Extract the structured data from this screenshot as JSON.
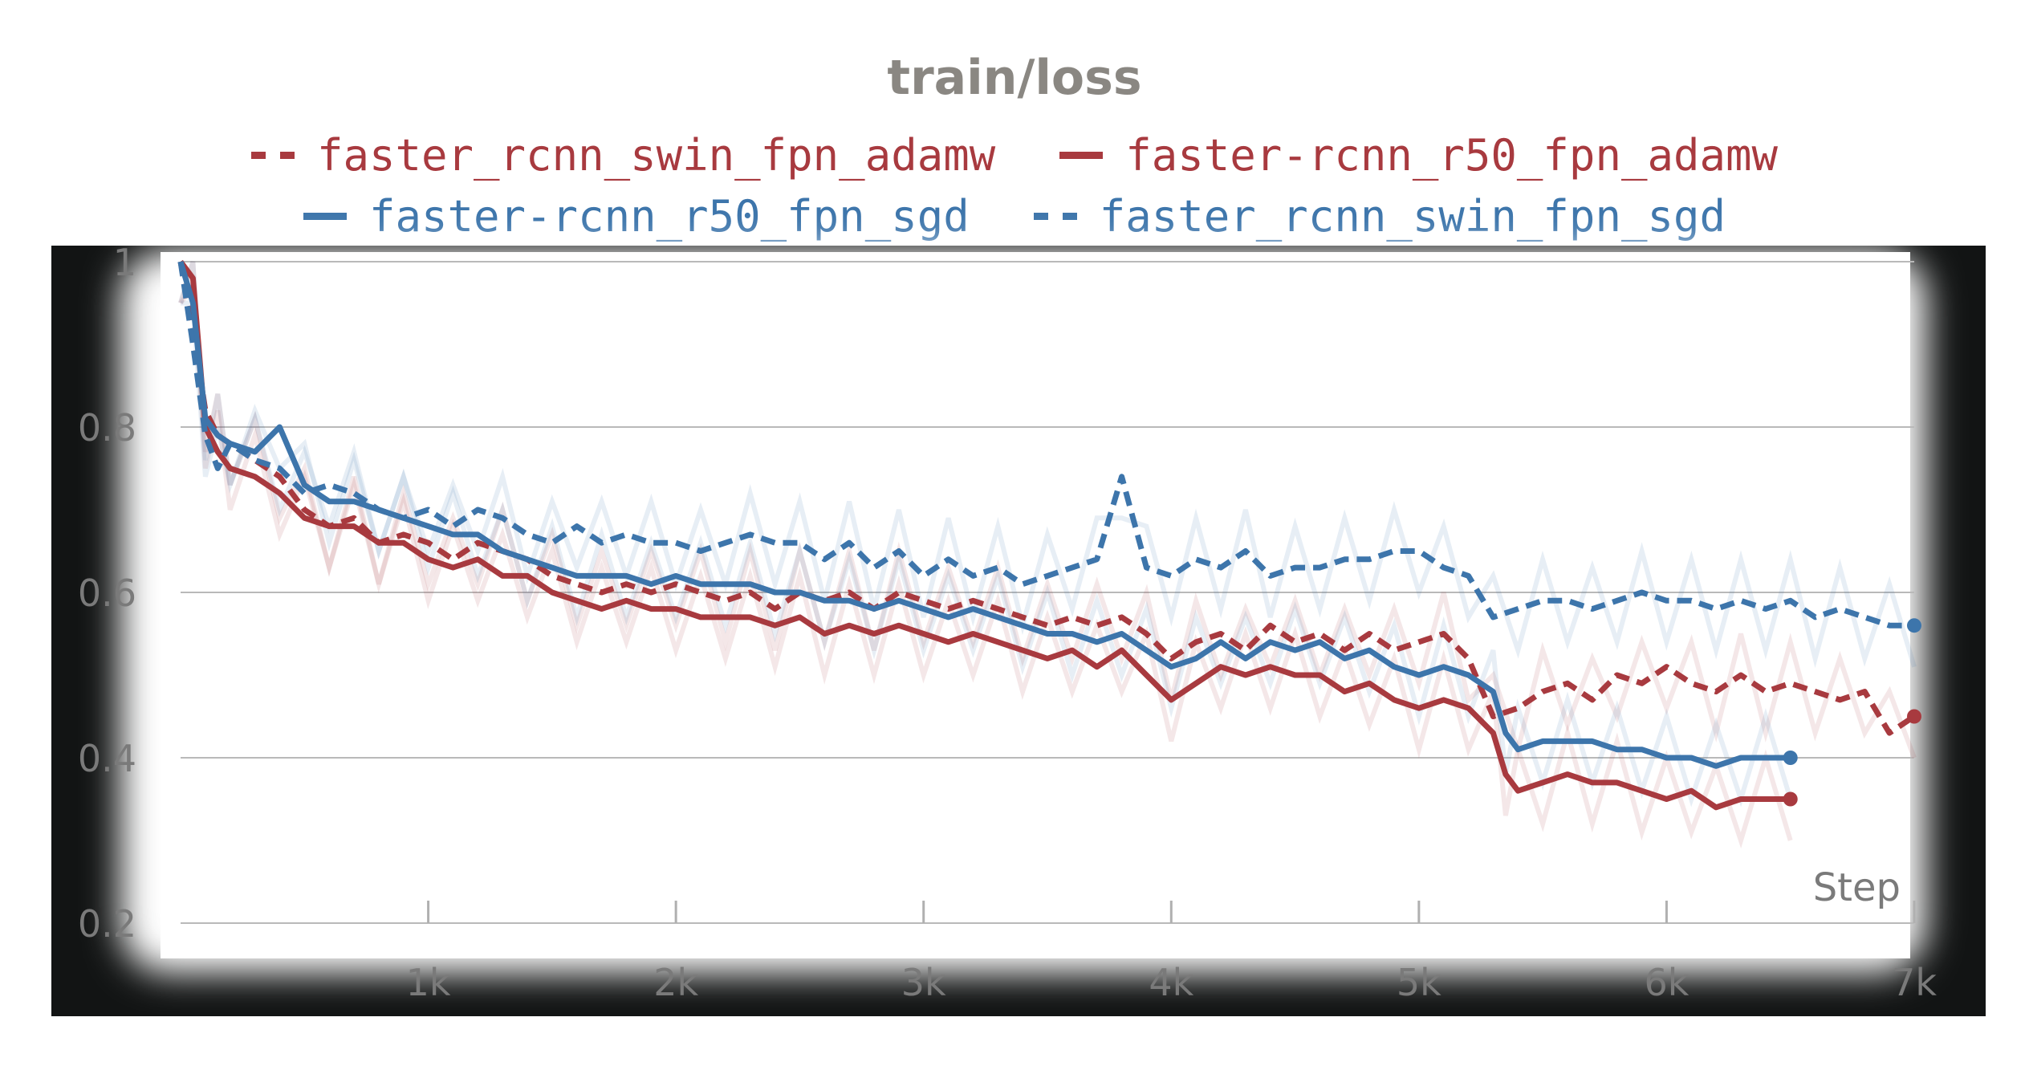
{
  "chart_data": {
    "type": "line",
    "title": "train/loss",
    "xlabel": "Step",
    "ylabel": "",
    "xlim": [
      0,
      7000
    ],
    "ylim": [
      0.2,
      1.0
    ],
    "x_ticks": [
      1000,
      2000,
      3000,
      4000,
      5000,
      6000,
      7000
    ],
    "x_tick_labels": [
      "1k",
      "2k",
      "3k",
      "4k",
      "5k",
      "6k",
      "7k"
    ],
    "y_ticks": [
      0.2,
      0.4,
      0.6,
      0.8,
      1.0
    ],
    "y_tick_labels": [
      "0.2",
      "0.4",
      "0.6",
      "0.8",
      "1"
    ],
    "grid": true,
    "legend_position": "top-center",
    "colors": {
      "red": "#a83a3f",
      "blue": "#3d75ab",
      "title": "#8a8782",
      "tick": "#7a7a7a",
      "frame": "#121414"
    },
    "series": [
      {
        "name": "faster_rcnn_swin_fpn_adamw",
        "color": "#a83a3f",
        "dash": true,
        "x": [
          0,
          50,
          100,
          150,
          200,
          300,
          400,
          500,
          600,
          700,
          800,
          900,
          1000,
          1100,
          1200,
          1300,
          1400,
          1500,
          1600,
          1700,
          1800,
          1900,
          2000,
          2100,
          2200,
          2300,
          2400,
          2500,
          2600,
          2700,
          2800,
          2900,
          3000,
          3100,
          3200,
          3300,
          3400,
          3500,
          3600,
          3700,
          3800,
          3900,
          4000,
          4100,
          4200,
          4300,
          4400,
          4500,
          4600,
          4700,
          4800,
          4900,
          5000,
          5100,
          5200,
          5300,
          5400,
          5500,
          5600,
          5700,
          5800,
          5900,
          6000,
          6100,
          6200,
          6300,
          6400,
          6500,
          6600,
          6700,
          6800,
          6900,
          7000
        ],
        "values": [
          1.0,
          0.92,
          0.82,
          0.79,
          0.78,
          0.76,
          0.74,
          0.7,
          0.68,
          0.69,
          0.66,
          0.67,
          0.66,
          0.64,
          0.66,
          0.65,
          0.64,
          0.62,
          0.61,
          0.6,
          0.61,
          0.6,
          0.61,
          0.6,
          0.59,
          0.6,
          0.58,
          0.6,
          0.59,
          0.6,
          0.58,
          0.6,
          0.59,
          0.58,
          0.59,
          0.58,
          0.57,
          0.56,
          0.57,
          0.56,
          0.57,
          0.55,
          0.52,
          0.54,
          0.55,
          0.53,
          0.56,
          0.54,
          0.55,
          0.53,
          0.55,
          0.53,
          0.54,
          0.55,
          0.52,
          0.45,
          0.46,
          0.48,
          0.49,
          0.47,
          0.5,
          0.49,
          0.51,
          0.49,
          0.48,
          0.5,
          0.48,
          0.49,
          0.48,
          0.47,
          0.48,
          0.43,
          0.45
        ]
      },
      {
        "name": "faster-rcnn_r50_fpn_adamw",
        "color": "#a83a3f",
        "dash": false,
        "x": [
          0,
          50,
          100,
          150,
          200,
          300,
          400,
          500,
          600,
          700,
          800,
          900,
          1000,
          1100,
          1200,
          1300,
          1400,
          1500,
          1600,
          1700,
          1800,
          1900,
          2000,
          2100,
          2200,
          2300,
          2400,
          2500,
          2600,
          2700,
          2800,
          2900,
          3000,
          3100,
          3200,
          3300,
          3400,
          3500,
          3600,
          3700,
          3800,
          3900,
          4000,
          4100,
          4200,
          4300,
          4400,
          4500,
          4600,
          4700,
          4800,
          4900,
          5000,
          5100,
          5200,
          5300,
          5350,
          5400,
          5500,
          5600,
          5700,
          5800,
          5900,
          6000,
          6100,
          6200,
          6300,
          6400,
          6500
        ],
        "values": [
          1.0,
          0.98,
          0.8,
          0.77,
          0.75,
          0.74,
          0.72,
          0.69,
          0.68,
          0.68,
          0.66,
          0.66,
          0.64,
          0.63,
          0.64,
          0.62,
          0.62,
          0.6,
          0.59,
          0.58,
          0.59,
          0.58,
          0.58,
          0.57,
          0.57,
          0.57,
          0.56,
          0.57,
          0.55,
          0.56,
          0.55,
          0.56,
          0.55,
          0.54,
          0.55,
          0.54,
          0.53,
          0.52,
          0.53,
          0.51,
          0.53,
          0.5,
          0.47,
          0.49,
          0.51,
          0.5,
          0.51,
          0.5,
          0.5,
          0.48,
          0.49,
          0.47,
          0.46,
          0.47,
          0.46,
          0.43,
          0.38,
          0.36,
          0.37,
          0.38,
          0.37,
          0.37,
          0.36,
          0.35,
          0.36,
          0.34,
          0.35,
          0.35,
          0.35
        ]
      },
      {
        "name": "faster-rcnn_r50_fpn_sgd",
        "color": "#3d75ab",
        "dash": false,
        "x": [
          0,
          50,
          100,
          150,
          200,
          300,
          400,
          500,
          600,
          700,
          800,
          900,
          1000,
          1100,
          1200,
          1300,
          1400,
          1500,
          1600,
          1700,
          1800,
          1900,
          2000,
          2100,
          2200,
          2300,
          2400,
          2500,
          2600,
          2700,
          2800,
          2900,
          3000,
          3100,
          3200,
          3300,
          3400,
          3500,
          3600,
          3700,
          3800,
          3900,
          4000,
          4100,
          4200,
          4300,
          4400,
          4500,
          4600,
          4700,
          4800,
          4900,
          5000,
          5100,
          5200,
          5300,
          5350,
          5400,
          5500,
          5600,
          5700,
          5800,
          5900,
          6000,
          6100,
          6200,
          6300,
          6400,
          6500
        ],
        "values": [
          1.0,
          0.95,
          0.81,
          0.79,
          0.78,
          0.77,
          0.8,
          0.73,
          0.71,
          0.71,
          0.7,
          0.69,
          0.68,
          0.67,
          0.67,
          0.65,
          0.64,
          0.63,
          0.62,
          0.62,
          0.62,
          0.61,
          0.62,
          0.61,
          0.61,
          0.61,
          0.6,
          0.6,
          0.59,
          0.59,
          0.58,
          0.59,
          0.58,
          0.57,
          0.58,
          0.57,
          0.56,
          0.55,
          0.55,
          0.54,
          0.55,
          0.53,
          0.51,
          0.52,
          0.54,
          0.52,
          0.54,
          0.53,
          0.54,
          0.52,
          0.53,
          0.51,
          0.5,
          0.51,
          0.5,
          0.48,
          0.43,
          0.41,
          0.42,
          0.42,
          0.42,
          0.41,
          0.41,
          0.4,
          0.4,
          0.39,
          0.4,
          0.4,
          0.4
        ]
      },
      {
        "name": "faster_rcnn_swin_fpn_sgd",
        "color": "#3d75ab",
        "dash": true,
        "x": [
          0,
          50,
          100,
          150,
          200,
          300,
          400,
          500,
          600,
          700,
          800,
          900,
          1000,
          1100,
          1200,
          1300,
          1400,
          1500,
          1600,
          1700,
          1800,
          1900,
          2000,
          2100,
          2200,
          2300,
          2400,
          2500,
          2600,
          2700,
          2800,
          2900,
          3000,
          3100,
          3200,
          3300,
          3400,
          3500,
          3600,
          3700,
          3800,
          3900,
          4000,
          4100,
          4200,
          4300,
          4400,
          4500,
          4600,
          4700,
          4800,
          4900,
          5000,
          5100,
          5200,
          5300,
          5400,
          5500,
          5600,
          5700,
          5800,
          5900,
          6000,
          6100,
          6200,
          6300,
          6400,
          6500,
          6600,
          6700,
          6800,
          6900,
          7000
        ],
        "values": [
          1.0,
          0.9,
          0.79,
          0.75,
          0.78,
          0.76,
          0.75,
          0.72,
          0.73,
          0.72,
          0.7,
          0.69,
          0.7,
          0.68,
          0.7,
          0.69,
          0.67,
          0.66,
          0.68,
          0.66,
          0.67,
          0.66,
          0.66,
          0.65,
          0.66,
          0.67,
          0.66,
          0.66,
          0.64,
          0.66,
          0.63,
          0.65,
          0.62,
          0.64,
          0.62,
          0.63,
          0.61,
          0.62,
          0.63,
          0.64,
          0.74,
          0.63,
          0.62,
          0.64,
          0.63,
          0.65,
          0.62,
          0.63,
          0.63,
          0.64,
          0.64,
          0.65,
          0.65,
          0.63,
          0.62,
          0.57,
          0.58,
          0.59,
          0.59,
          0.58,
          0.59,
          0.6,
          0.59,
          0.59,
          0.58,
          0.59,
          0.58,
          0.59,
          0.57,
          0.58,
          0.57,
          0.56,
          0.56
        ]
      }
    ]
  }
}
